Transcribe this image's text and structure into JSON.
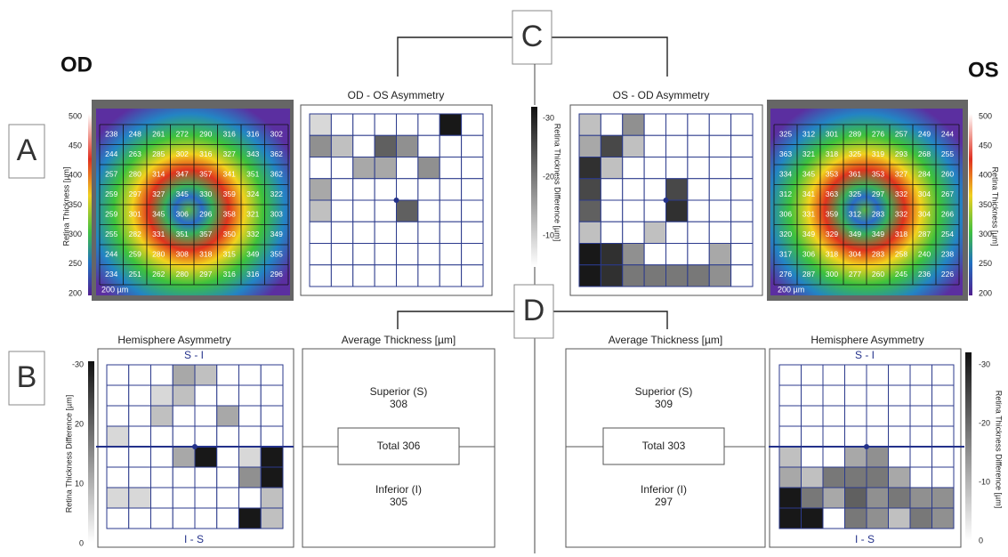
{
  "labels": {
    "od": "OD",
    "os": "OS",
    "a": "A",
    "b": "B",
    "c": "C",
    "d": "D"
  },
  "od_map": {
    "axis_label": "Retina Thickness [µm]",
    "ticks": [
      500,
      450,
      400,
      350,
      300,
      250,
      200
    ],
    "scale": "200 µm",
    "rows": [
      [
        238,
        248,
        261,
        272,
        290,
        316,
        316,
        302
      ],
      [
        244,
        263,
        285,
        302,
        316,
        327,
        343,
        362
      ],
      [
        257,
        280,
        314,
        347,
        357,
        341,
        351,
        362
      ],
      [
        259,
        297,
        327,
        345,
        330,
        359,
        324,
        322
      ],
      [
        259,
        301,
        345,
        306,
        296,
        358,
        321,
        303
      ],
      [
        255,
        282,
        331,
        351,
        357,
        350,
        332,
        349
      ],
      [
        244,
        259,
        280,
        308,
        318,
        315,
        349,
        355
      ],
      [
        234,
        251,
        262,
        280,
        297,
        316,
        316,
        296
      ]
    ]
  },
  "os_map": {
    "axis_label": "Retina Thickness [µm]",
    "ticks": [
      500,
      450,
      400,
      350,
      300,
      250,
      200
    ],
    "scale": "200 µm",
    "rows": [
      [
        325,
        312,
        301,
        289,
        276,
        257,
        249,
        244
      ],
      [
        363,
        321,
        318,
        325,
        319,
        293,
        268,
        255
      ],
      [
        334,
        345,
        353,
        361,
        353,
        327,
        284,
        260
      ],
      [
        312,
        341,
        363,
        325,
        297,
        332,
        304,
        267
      ],
      [
        306,
        331,
        359,
        312,
        283,
        332,
        304,
        266
      ],
      [
        320,
        349,
        329,
        349,
        349,
        318,
        287,
        254
      ],
      [
        317,
        306,
        318,
        304,
        283,
        258,
        240,
        238
      ],
      [
        276,
        287,
        300,
        277,
        260,
        245,
        236,
        226
      ]
    ]
  },
  "od_os_asymmetry": {
    "title": "OD - OS Asymmetry"
  },
  "os_od_asymmetry": {
    "title": "OS - OD Asymmetry"
  },
  "difference_scale": {
    "axis_label": "Retina Thickness Difference [µm]",
    "ticks": [
      -30,
      -20,
      -10
    ]
  },
  "od_hemisphere": {
    "title": "Hemisphere Asymmetry",
    "top": "S - I",
    "bottom": "I - S",
    "axis_label": "Retina Thickness Difference [µm]",
    "ticks": [
      -30,
      20,
      10,
      0
    ]
  },
  "os_hemisphere": {
    "title": "Hemisphere Asymmetry",
    "top": "S - I",
    "bottom": "I - S",
    "axis_label": "Retina Thickness Difference [µm]",
    "ticks": [
      -30,
      -20,
      -10,
      0
    ]
  },
  "od_average": {
    "title": "Average Thickness [µm]",
    "superior_label": "Superior (S)",
    "superior": 308,
    "total": "Total 306",
    "inferior_label": "Inferior (I)",
    "inferior": 305
  },
  "os_average": {
    "title": "Average Thickness [µm]",
    "superior_label": "Superior (S)",
    "superior": 309,
    "total": "Total 303",
    "inferior_label": "Inferior (I)",
    "inferior": 297
  }
}
